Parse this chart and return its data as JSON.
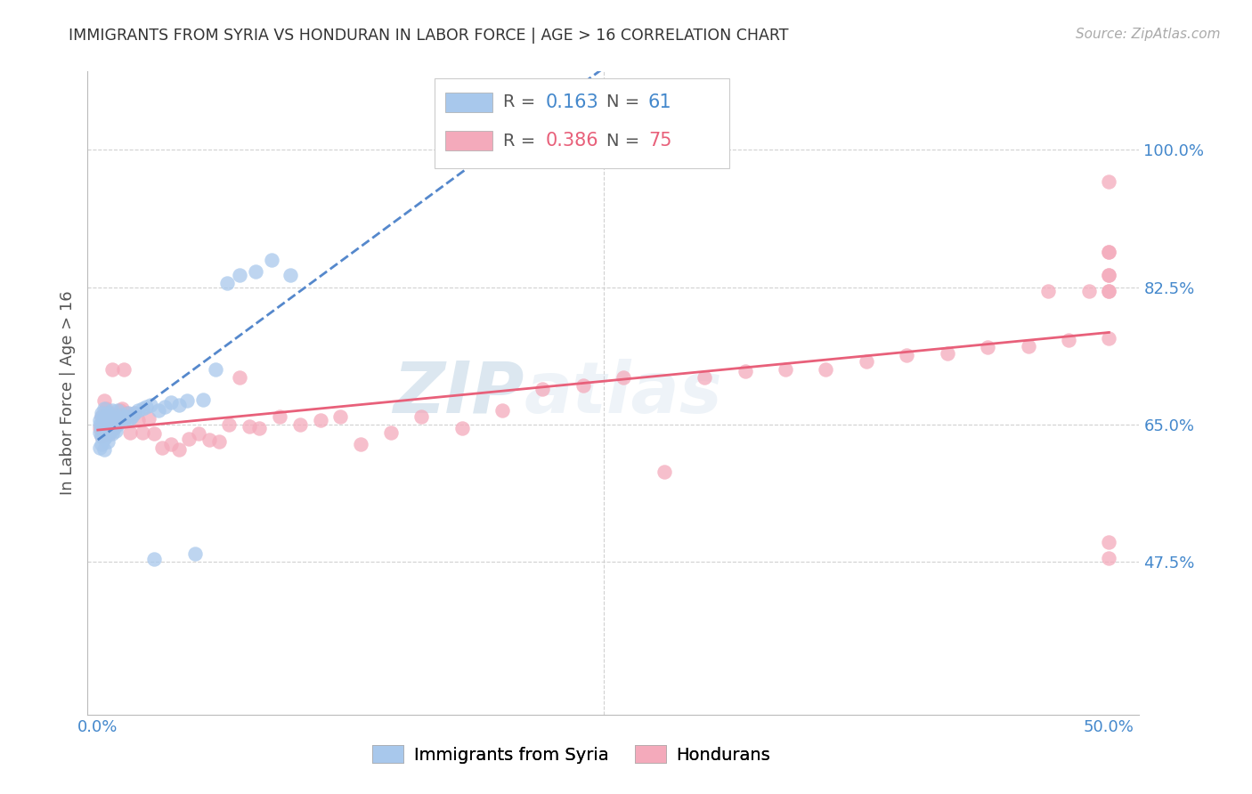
{
  "title": "IMMIGRANTS FROM SYRIA VS HONDURAN IN LABOR FORCE | AGE > 16 CORRELATION CHART",
  "source": "Source: ZipAtlas.com",
  "ylabel": "In Labor Force | Age > 16",
  "watermark_1": "ZIP",
  "watermark_2": "atlas",
  "xlim": [
    -0.005,
    0.515
  ],
  "ylim": [
    0.28,
    1.1
  ],
  "xtick_positions": [
    0.0,
    0.1,
    0.2,
    0.3,
    0.4,
    0.5
  ],
  "xticklabels": [
    "0.0%",
    "",
    "",
    "",
    "",
    "50.0%"
  ],
  "ytick_positions": [
    0.475,
    0.65,
    0.825,
    1.0
  ],
  "ytick_labels": [
    "47.5%",
    "65.0%",
    "82.5%",
    "100.0%"
  ],
  "syria_color": "#A8C8EC",
  "honduran_color": "#F4AABB",
  "syria_line_color": "#5588CC",
  "honduran_line_color": "#E8607A",
  "grid_color": "#cccccc",
  "title_color": "#333333",
  "axis_label_color": "#555555",
  "tick_label_color": "#4488CC",
  "source_color": "#aaaaaa",
  "background_color": "#ffffff",
  "syria_R": 0.163,
  "syria_N": 61,
  "honduran_R": 0.386,
  "honduran_N": 75,
  "syria_x": [
    0.001,
    0.001,
    0.001,
    0.001,
    0.002,
    0.002,
    0.002,
    0.002,
    0.002,
    0.002,
    0.003,
    0.003,
    0.003,
    0.003,
    0.003,
    0.004,
    0.004,
    0.004,
    0.004,
    0.005,
    0.005,
    0.005,
    0.005,
    0.006,
    0.006,
    0.006,
    0.007,
    0.007,
    0.007,
    0.008,
    0.008,
    0.009,
    0.009,
    0.01,
    0.01,
    0.011,
    0.012,
    0.013,
    0.014,
    0.015,
    0.016,
    0.017,
    0.018,
    0.02,
    0.022,
    0.024,
    0.026,
    0.028,
    0.03,
    0.033,
    0.036,
    0.04,
    0.044,
    0.048,
    0.052,
    0.058,
    0.064,
    0.07,
    0.078,
    0.086,
    0.095
  ],
  "syria_y": [
    0.64,
    0.62,
    0.65,
    0.655,
    0.665,
    0.635,
    0.65,
    0.66,
    0.625,
    0.645,
    0.658,
    0.64,
    0.67,
    0.632,
    0.618,
    0.66,
    0.645,
    0.635,
    0.655,
    0.65,
    0.638,
    0.665,
    0.628,
    0.655,
    0.64,
    0.66,
    0.65,
    0.638,
    0.668,
    0.645,
    0.655,
    0.642,
    0.66,
    0.65,
    0.668,
    0.658,
    0.662,
    0.655,
    0.66,
    0.665,
    0.658,
    0.66,
    0.665,
    0.668,
    0.67,
    0.672,
    0.675,
    0.478,
    0.668,
    0.672,
    0.678,
    0.675,
    0.68,
    0.485,
    0.682,
    0.72,
    0.83,
    0.84,
    0.845,
    0.86,
    0.84
  ],
  "honduran_x": [
    0.001,
    0.002,
    0.002,
    0.003,
    0.003,
    0.004,
    0.004,
    0.004,
    0.005,
    0.005,
    0.006,
    0.006,
    0.007,
    0.007,
    0.008,
    0.008,
    0.009,
    0.01,
    0.011,
    0.012,
    0.013,
    0.014,
    0.015,
    0.016,
    0.018,
    0.02,
    0.022,
    0.025,
    0.028,
    0.032,
    0.036,
    0.04,
    0.045,
    0.05,
    0.055,
    0.06,
    0.065,
    0.07,
    0.075,
    0.08,
    0.09,
    0.1,
    0.11,
    0.12,
    0.13,
    0.145,
    0.16,
    0.18,
    0.2,
    0.22,
    0.24,
    0.26,
    0.28,
    0.3,
    0.32,
    0.34,
    0.36,
    0.38,
    0.4,
    0.42,
    0.44,
    0.46,
    0.47,
    0.48,
    0.49,
    0.5,
    0.5,
    0.5,
    0.5,
    0.5,
    0.5,
    0.5,
    0.5,
    0.5,
    0.5
  ],
  "honduran_y": [
    0.645,
    0.635,
    0.66,
    0.65,
    0.68,
    0.638,
    0.658,
    0.67,
    0.642,
    0.66,
    0.638,
    0.665,
    0.645,
    0.72,
    0.658,
    0.65,
    0.662,
    0.658,
    0.668,
    0.67,
    0.72,
    0.665,
    0.66,
    0.64,
    0.665,
    0.655,
    0.64,
    0.658,
    0.638,
    0.62,
    0.625,
    0.618,
    0.632,
    0.638,
    0.63,
    0.628,
    0.65,
    0.71,
    0.648,
    0.645,
    0.66,
    0.65,
    0.655,
    0.66,
    0.625,
    0.64,
    0.66,
    0.645,
    0.668,
    0.695,
    0.7,
    0.71,
    0.59,
    0.71,
    0.718,
    0.72,
    0.72,
    0.73,
    0.738,
    0.74,
    0.748,
    0.75,
    0.82,
    0.758,
    0.82,
    0.96,
    0.87,
    0.84,
    0.82,
    0.76,
    0.48,
    0.82,
    0.84,
    0.87,
    0.5
  ]
}
